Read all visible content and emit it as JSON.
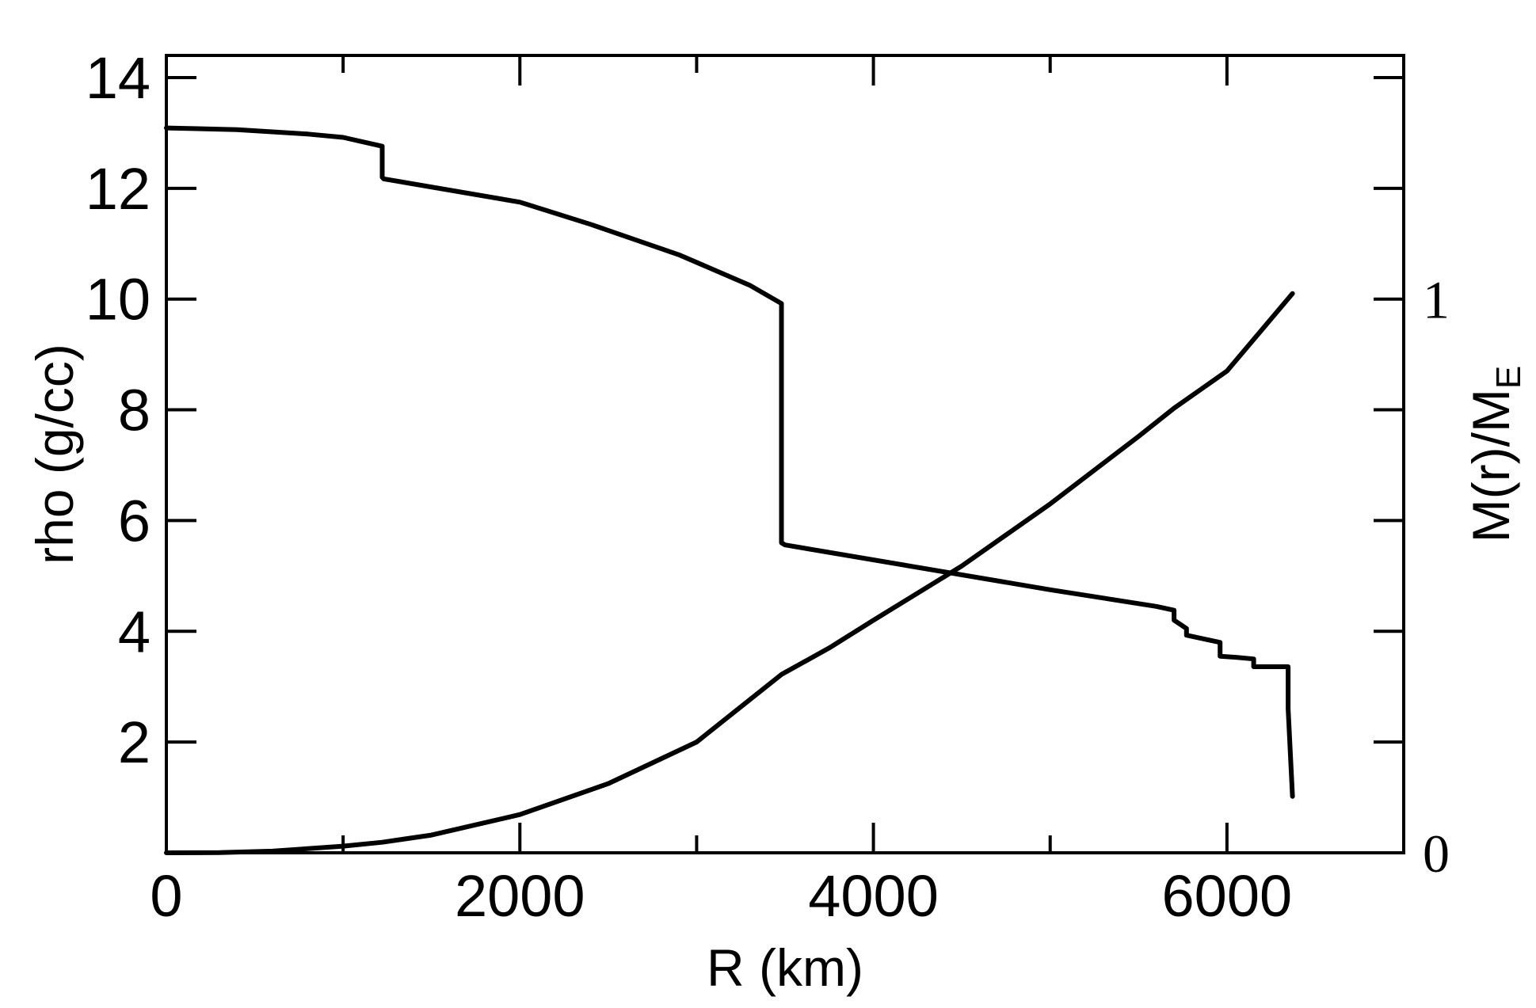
{
  "chart_data": {
    "type": "line",
    "title": "",
    "xlabel": "R (km)",
    "ylabel": "rho (g/cc)",
    "y2label": {
      "main": "M(r)/M",
      "subscript": "E"
    },
    "xlim": [
      0,
      7000
    ],
    "ylim": [
      0,
      14.4
    ],
    "y2lim": [
      0,
      1.44
    ],
    "grid": false,
    "xticks": [
      0,
      2000,
      4000,
      6000
    ],
    "xtick_labels": [
      "0",
      "2000",
      "4000",
      "6000"
    ],
    "xminor_ticks": [
      1000,
      3000,
      5000,
      7000
    ],
    "yticks": [
      2,
      4,
      6,
      8,
      10,
      12,
      14
    ],
    "ytick_labels": [
      "2",
      "4",
      "6",
      "8",
      "10",
      "12",
      "14"
    ],
    "y2ticks": [
      0,
      1
    ],
    "y2tick_labels": [
      "0",
      "1"
    ],
    "line_color": "#000000",
    "series": [
      {
        "axis": "left",
        "x": [
          0,
          400,
          800,
          1000,
          1221,
          1221,
          1230,
          2000,
          2400,
          2900,
          3300,
          3480,
          3480,
          3500,
          5000,
          5600,
          5701,
          5701,
          5771,
          5771,
          5961,
          5961,
          6051,
          6151,
          6151,
          6346,
          6346,
          6371
        ],
        "y": [
          13.09,
          13.06,
          12.98,
          12.92,
          12.76,
          12.2,
          12.17,
          11.75,
          11.35,
          10.8,
          10.25,
          9.92,
          5.6,
          5.56,
          4.75,
          4.45,
          4.38,
          4.2,
          4.05,
          3.93,
          3.8,
          3.55,
          3.53,
          3.5,
          3.36,
          3.36,
          2.6,
          1.02
        ]
      },
      {
        "axis": "right",
        "x": [
          0,
          300,
          600,
          1000,
          1221,
          1500,
          2000,
          2500,
          3000,
          3480,
          3750,
          4000,
          4500,
          5000,
          5500,
          5701,
          6000,
          6371
        ],
        "y": [
          0,
          0.0003,
          0.003,
          0.012,
          0.019,
          0.032,
          0.069,
          0.125,
          0.2,
          0.322,
          0.37,
          0.42,
          0.518,
          0.63,
          0.752,
          0.803,
          0.87,
          1.01
        ]
      }
    ]
  }
}
